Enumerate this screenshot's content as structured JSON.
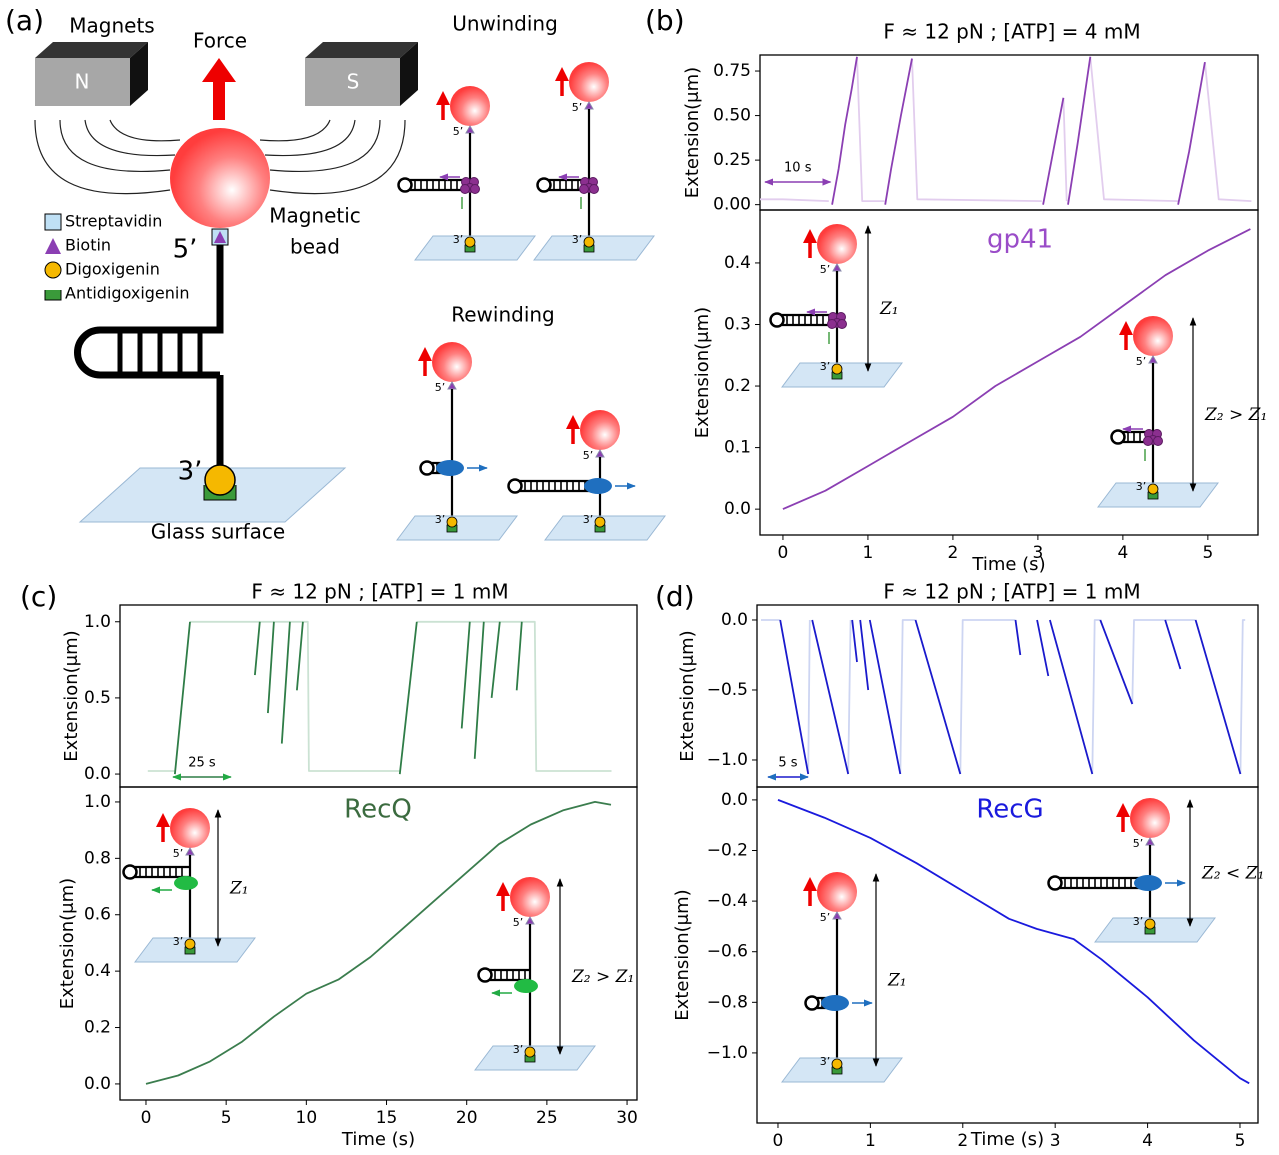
{
  "panels": [
    "(a)",
    "(b)",
    "(c)",
    "(d)"
  ],
  "diagram": {
    "magnets": "Magnets",
    "north": "N",
    "south": "S",
    "force": "Force",
    "magnetic_bead": [
      "Magnetic",
      "bead"
    ],
    "five_prime": "5’",
    "three_prime": "3’",
    "glass_surface": "Glass surface",
    "unwinding": "Unwinding",
    "rewinding": "Rewinding",
    "legend": [
      "Streptavidin",
      "Biotin",
      "Digoxigenin",
      "Antidigoxigenin"
    ]
  },
  "chart_data": [
    {
      "type": "line",
      "title": "F ≈ 12 pN ; [ATP] = 4 mM",
      "ylabel": "Extension(μm)",
      "xlim": [
        0,
        76
      ],
      "ylim": [
        -0.03,
        0.84
      ],
      "yticks": [
        {
          "value": 0,
          "label": "0.00"
        },
        0.25,
        {
          "value": 0.5,
          "label": "0.50"
        },
        0.75
      ],
      "scale_bar": {
        "value": 10,
        "label": "10 s"
      },
      "series": [
        {
          "color": "#e2cdee",
          "x": [
            0,
            3.5,
            10.5,
            null,
            14.8,
            15.6,
            19,
            null,
            23.2,
            24,
            43,
            null,
            46.3,
            46.8,
            null,
            50.4,
            52.5,
            63.8,
            null,
            67.9,
            70,
            75
          ],
          "values": [
            0.03,
            0.03,
            0.02,
            null,
            0.83,
            0.02,
            0.02,
            null,
            0.82,
            0.03,
            0.02,
            null,
            0.6,
            0.02,
            null,
            0.83,
            0.03,
            0.02,
            null,
            0.8,
            0.03,
            0.02
          ]
        },
        {
          "color": "#8b3fb3",
          "x": [
            11,
            12,
            13,
            14,
            14.8,
            null,
            19.1,
            20,
            21.5,
            23.2,
            null,
            43.2,
            46.3,
            null,
            47,
            48.5,
            50.4,
            null,
            63.8,
            65.5,
            67.9
          ],
          "values": [
            0,
            0.2,
            0.45,
            0.65,
            0.83,
            null,
            0,
            0.2,
            0.5,
            0.82,
            null,
            0,
            0.6,
            null,
            0,
            0.35,
            0.83,
            null,
            0,
            0.3,
            0.8
          ]
        }
      ]
    },
    {
      "type": "line",
      "xlabel": "Time (s)",
      "ylabel": "Extension(μm)",
      "annotation": "gp41",
      "annotation_color": "#9a4cc8",
      "z_labels": [
        "Z₁",
        "Z₂ > Z₁"
      ],
      "xlim": [
        -0.27,
        5.59
      ],
      "ylim": [
        -0.042,
        0.486
      ],
      "xticks": [
        0,
        1,
        2,
        3,
        4,
        5
      ],
      "yticks": [
        {
          "value": 0,
          "label": "0.0"
        },
        0.1,
        0.2,
        0.3,
        0.4
      ],
      "series": [
        {
          "color": "#8b3fb3",
          "x": [
            0,
            0.5,
            1,
            1.5,
            2,
            2.5,
            3,
            3.5,
            4,
            4.5,
            5,
            5.5
          ],
          "values": [
            0,
            0.03,
            0.07,
            0.11,
            0.15,
            0.2,
            0.24,
            0.28,
            0.33,
            0.38,
            0.42,
            0.455
          ]
        }
      ]
    },
    {
      "type": "line",
      "title": "F ≈ 12 pN ; [ATP] = 1 mM",
      "ylabel": "Extension(μm)",
      "xlim": [
        0,
        223
      ],
      "ylim": [
        -0.085,
        1.11
      ],
      "yticks": [
        {
          "value": 0,
          "label": "0.0"
        },
        0.5,
        {
          "value": 1,
          "label": "1.0"
        }
      ],
      "scale_bar": {
        "value": 25,
        "label": "25 s"
      },
      "series": [
        {
          "color": "#cbe2d3",
          "x": [
            12,
            23.7,
            null,
            30.2,
            81,
            81.5,
            120.7,
            null,
            128,
            178.9,
            179.5,
            212
          ],
          "values": [
            0.02,
            0.02,
            null,
            1,
            1,
            0.02,
            0.02,
            null,
            1,
            1,
            0.02,
            0.02
          ]
        },
        {
          "color": "#2f7d47",
          "x": [
            23.7,
            30.2,
            null,
            58.2,
            60.3,
            null,
            63.8,
            66.4,
            null,
            69.8,
            73.3,
            null,
            76.3,
            78.9,
            null,
            120.7,
            128,
            null,
            147.4,
            150.9,
            null,
            153,
            156.9,
            null,
            160.3,
            163.8,
            null,
            171.1,
            173.3
          ],
          "values": [
            0,
            1,
            null,
            0.65,
            1,
            null,
            0.4,
            1,
            null,
            0.2,
            1,
            null,
            0.55,
            1,
            null,
            0,
            1,
            null,
            0.3,
            1,
            null,
            0.1,
            1,
            null,
            0.5,
            1,
            null,
            0.55,
            1
          ]
        }
      ]
    },
    {
      "type": "line",
      "xlabel": "Time (s)",
      "ylabel": "Extension(μm)",
      "annotation": "RecQ",
      "annotation_color": "#3b6b3f",
      "z_labels": [
        "Z₁",
        "Z₂ > Z₁"
      ],
      "xlim": [
        -1.62,
        30.62
      ],
      "ylim": [
        -0.057,
        1.053
      ],
      "xticks": [
        0,
        5,
        10,
        15,
        20,
        25,
        30
      ],
      "yticks": [
        {
          "value": 0,
          "label": "0.0"
        },
        0.2,
        0.4,
        0.6,
        0.8,
        {
          "value": 1,
          "label": "1.0"
        }
      ],
      "series": [
        {
          "color": "#3b7d4e",
          "x": [
            0,
            2,
            4,
            6,
            8,
            10,
            12,
            14,
            16,
            18,
            20,
            22,
            24,
            26,
            28,
            29
          ],
          "values": [
            0,
            0.03,
            0.08,
            0.15,
            0.24,
            0.32,
            0.37,
            0.45,
            0.55,
            0.65,
            0.75,
            0.85,
            0.92,
            0.97,
            1,
            0.99
          ]
        }
      ]
    },
    {
      "type": "line",
      "title": "F ≈ 12 pN ; [ATP] = 1 mM",
      "ylabel": "Extension(μm)",
      "xlim": [
        0,
        62.6
      ],
      "ylim": [
        -1.193,
        0.107
      ],
      "yticks": [
        {
          "value": 0,
          "label": "0.0"
        },
        {
          "value": -0.5,
          "label": "−0.5"
        },
        {
          "value": -1,
          "label": "−1.0"
        }
      ],
      "scale_bar": {
        "value": 5,
        "label": "5 s"
      },
      "series": [
        {
          "color": "#cdd5f2",
          "x": [
            0.5,
            2.9,
            null,
            6.4,
            6.6,
            null,
            11.4,
            11.7,
            null,
            17.9,
            18.2,
            19.8,
            null,
            25.4,
            25.7,
            32.3,
            null,
            41.9,
            42.2,
            42.9,
            null,
            46.9,
            47.1,
            54.8,
            null,
            60.4,
            60.7,
            61
          ],
          "values": [
            0,
            0,
            null,
            -1.1,
            0,
            null,
            -1.1,
            0,
            null,
            -1.1,
            0,
            0,
            null,
            -1.1,
            0,
            0,
            null,
            -1.1,
            0,
            0,
            null,
            -0.6,
            0,
            0,
            null,
            -1.1,
            0,
            0
          ]
        },
        {
          "color": "#1a1acc",
          "x": [
            2.9,
            6.4,
            null,
            6.9,
            11.4,
            null,
            11.9,
            12.5,
            null,
            12.9,
            13.9,
            null,
            14.1,
            17.9,
            null,
            19.8,
            25.4,
            null,
            32.3,
            32.9,
            null,
            35,
            36.4,
            null,
            36.6,
            41.9,
            null,
            42.9,
            46.9,
            null,
            51,
            52.9,
            null,
            54.8,
            60.4
          ],
          "values": [
            0,
            -1.1,
            null,
            0,
            -1.1,
            null,
            0,
            -0.3,
            null,
            0,
            -0.5,
            null,
            0,
            -1.1,
            null,
            0,
            -1.1,
            null,
            0,
            -0.25,
            null,
            0,
            -0.4,
            null,
            0,
            -1.1,
            null,
            0,
            -0.6,
            null,
            0,
            -0.35,
            null,
            0,
            -1.1
          ]
        }
      ]
    },
    {
      "type": "line",
      "xlabel": "Time (s)",
      "ylabel": "Extension(μm)",
      "annotation": "RecG",
      "annotation_color": "#1a1add",
      "z_labels": [
        "Z₂ < Z₁",
        "Z₁"
      ],
      "xlim": [
        -0.227,
        5.195
      ],
      "ylim": [
        -1.277,
        0.051
      ],
      "xticks": [
        0,
        1,
        2,
        3,
        4,
        5
      ],
      "yticks": [
        {
          "value": 0,
          "label": "0.0"
        },
        {
          "value": -0.2,
          "label": "−0.2"
        },
        {
          "value": -0.4,
          "label": "−0.4"
        },
        {
          "value": -0.6,
          "label": "−0.6"
        },
        {
          "value": -0.8,
          "label": "−0.8"
        },
        {
          "value": -1,
          "label": "−1.0"
        }
      ],
      "series": [
        {
          "color": "#1a1add",
          "x": [
            0,
            0.5,
            1,
            1.5,
            2,
            2.5,
            2.8,
            3.2,
            3.5,
            4,
            4.5,
            5,
            5.1
          ],
          "values": [
            0,
            -0.07,
            -0.15,
            -0.25,
            -0.36,
            -0.47,
            -0.51,
            -0.55,
            -0.63,
            -0.78,
            -0.95,
            -1.1,
            -1.12
          ]
        }
      ]
    }
  ]
}
